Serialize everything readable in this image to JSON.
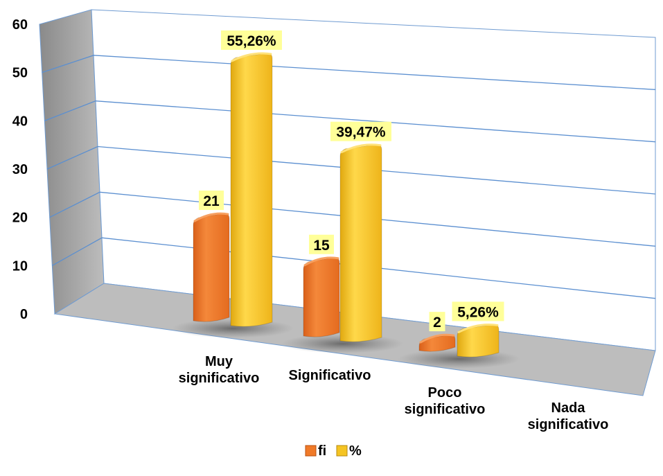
{
  "chart_data": {
    "type": "bar",
    "categories": [
      "Muy significativo",
      "Significativo",
      "Poco significativo",
      "Nada significativo"
    ],
    "series": [
      {
        "name": "fi",
        "values": [
          21,
          15,
          2,
          0
        ],
        "labels": [
          "21",
          "15",
          "2",
          ""
        ],
        "color": "#f07a28"
      },
      {
        "name": "%",
        "values": [
          55.26,
          39.47,
          5.26,
          0
        ],
        "labels": [
          "55,26%",
          "39,47%",
          "5,26%",
          ""
        ],
        "color": "#f5c423"
      }
    ],
    "yticks": [
      "0",
      "10",
      "20",
      "30",
      "40",
      "50",
      "60"
    ],
    "ylim": [
      0,
      60
    ],
    "grid": true,
    "legend_position": "bottom",
    "label_background": "#ffff99"
  }
}
